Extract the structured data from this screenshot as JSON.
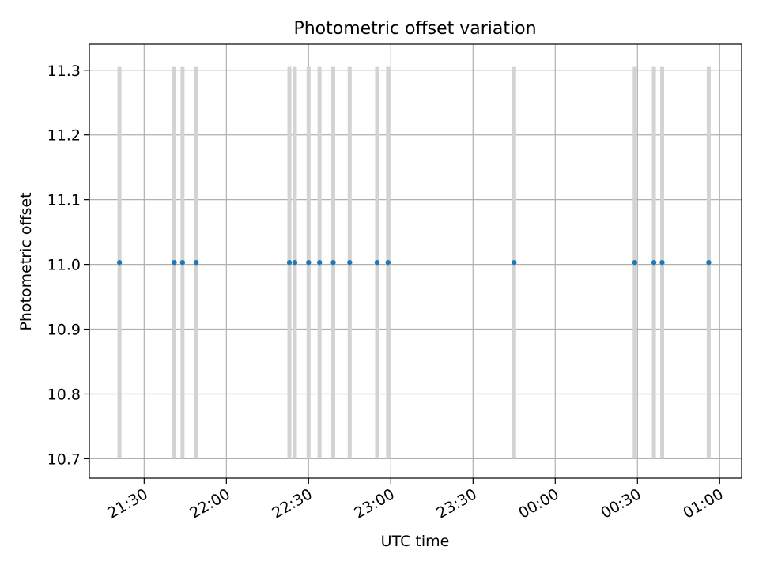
{
  "chart_data": {
    "type": "scatter",
    "title": "Photometric offset variation",
    "xlabel": "UTC time",
    "ylabel": "Photometric offset",
    "x_ticks": [
      "21:30",
      "22:00",
      "22:30",
      "23:00",
      "23:30",
      "00:00",
      "00:30",
      "01:00"
    ],
    "y_ticks": [
      "10.7",
      "10.8",
      "10.9",
      "11.0",
      "11.1",
      "11.2",
      "11.3"
    ],
    "xlim": [
      "21:10",
      "01:08"
    ],
    "ylim": [
      10.67,
      11.34
    ],
    "x_axis": "time (HH:MM), crossing midnight",
    "grid": true,
    "error_bar_color": "#d3d3d3",
    "point_color": "#1f77b4",
    "points": [
      {
        "x": "21:21",
        "y": 11.003,
        "yerr": [
          10.7,
          11.305
        ]
      },
      {
        "x": "21:41",
        "y": 11.003,
        "yerr": [
          10.7,
          11.305
        ]
      },
      {
        "x": "21:44",
        "y": 11.003,
        "yerr": [
          10.7,
          11.305
        ]
      },
      {
        "x": "21:49",
        "y": 11.003,
        "yerr": [
          10.7,
          11.305
        ]
      },
      {
        "x": "22:23",
        "y": 11.003,
        "yerr": [
          10.7,
          11.305
        ]
      },
      {
        "x": "22:25",
        "y": 11.003,
        "yerr": [
          10.7,
          11.305
        ]
      },
      {
        "x": "22:30",
        "y": 11.003,
        "yerr": [
          10.7,
          11.305
        ]
      },
      {
        "x": "22:34",
        "y": 11.003,
        "yerr": [
          10.7,
          11.305
        ]
      },
      {
        "x": "22:39",
        "y": 11.003,
        "yerr": [
          10.7,
          11.305
        ]
      },
      {
        "x": "22:45",
        "y": 11.003,
        "yerr": [
          10.7,
          11.305
        ]
      },
      {
        "x": "22:55",
        "y": 11.003,
        "yerr": [
          10.7,
          11.305
        ]
      },
      {
        "x": "22:59",
        "y": 11.003,
        "yerr": [
          10.7,
          11.305
        ]
      },
      {
        "x": "23:45",
        "y": 11.003,
        "yerr": [
          10.7,
          11.305
        ]
      },
      {
        "x": "00:29",
        "y": 11.003,
        "yerr": [
          10.7,
          11.305
        ]
      },
      {
        "x": "00:36",
        "y": 11.003,
        "yerr": [
          10.7,
          11.305
        ]
      },
      {
        "x": "00:39",
        "y": 11.003,
        "yerr": [
          10.7,
          11.305
        ]
      },
      {
        "x": "00:56",
        "y": 11.003,
        "yerr": [
          10.7,
          11.305
        ]
      }
    ]
  }
}
